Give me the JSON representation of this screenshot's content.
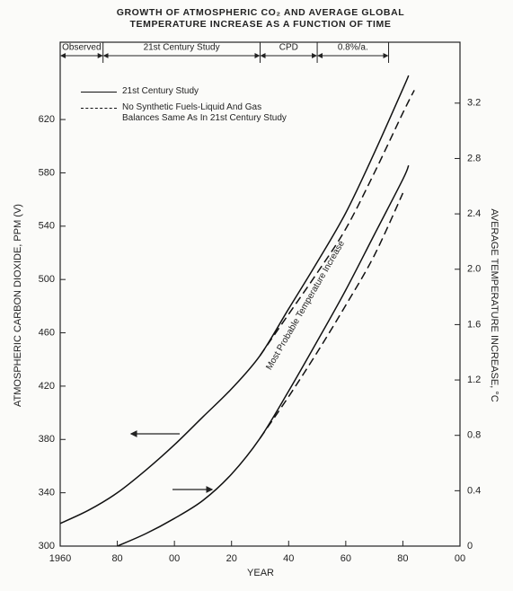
{
  "chart_data": {
    "type": "line",
    "title": [
      "GROWTH OF ATMOSPHERIC CO₂ AND AVERAGE GLOBAL",
      "TEMPERATURE INCREASE AS A FUNCTION OF TIME"
    ],
    "xlabel": "YEAR",
    "ylabel": "ATMOSPHERIC CARBON DIOXIDE, PPM (V)",
    "y2label": "AVERAGE TEMPERATURE INCREASE, °C",
    "annotation": "Most Probable Temperature Increase",
    "periods": [
      {
        "label": "Observed",
        "start": 1960,
        "end": 1975
      },
      {
        "label": "21st Century Study",
        "start": 1975,
        "end": 2030
      },
      {
        "label": "CPD",
        "start": 2030,
        "end": 2050
      },
      {
        "label": "0.8%/a.",
        "start": 2050,
        "end": 2075
      }
    ],
    "xlim": [
      1960,
      2100
    ],
    "xticks": [
      1960,
      {
        "value": 1980,
        "label": "80"
      },
      {
        "value": 2000,
        "label": "00"
      },
      {
        "value": 2020,
        "label": "20"
      },
      {
        "value": 2040,
        "label": "40"
      },
      {
        "value": 2060,
        "label": "60"
      },
      {
        "value": 2080,
        "label": "80"
      },
      {
        "value": 2100,
        "label": "00"
      }
    ],
    "ylim": [
      300,
      678
    ],
    "yticks": [
      300,
      340,
      380,
      420,
      460,
      500,
      540,
      580,
      620
    ],
    "y2lim": [
      0,
      3.64
    ],
    "y2ticks": [
      0,
      0.4,
      0.8,
      1.2,
      1.6,
      {
        "value": 2,
        "label": "2.0"
      },
      2.4,
      2.8,
      3.2
    ],
    "series": [
      {
        "name": "21st Century Study",
        "color": "#111111",
        "dash": false,
        "x": [
          1960,
          1970,
          1980,
          1990,
          2000,
          2010,
          2020,
          2030,
          2040,
          2050,
          2060,
          2070,
          2080,
          2082
        ],
        "values": [
          317,
          327,
          340,
          357,
          376,
          397,
          418,
          443,
          478,
          513,
          550,
          595,
          643,
          653
        ]
      },
      {
        "name": "No Synthetic Fuels-Liquid And Gas Balances Same As In 21st Century Study",
        "color": "#111111",
        "dash": true,
        "x": [
          2030,
          2040,
          2050,
          2060,
          2070,
          2080,
          2084
        ],
        "values": [
          443,
          474,
          505,
          538,
          580,
          625,
          642
        ]
      },
      {
        "color": "#111111",
        "dash": false,
        "axis": "y2",
        "x": [
          1980,
          1990,
          2000,
          2010,
          2020,
          2030,
          2040,
          2050,
          2060,
          2070,
          2080,
          2082
        ],
        "values": [
          0,
          0.09,
          0.2,
          0.33,
          0.52,
          0.78,
          1.12,
          1.48,
          1.85,
          2.25,
          2.65,
          2.75
        ]
      },
      {
        "color": "#111111",
        "dash": true,
        "axis": "y2",
        "x": [
          2030,
          2040,
          2050,
          2060,
          2070,
          2080
        ],
        "values": [
          0.78,
          1.08,
          1.4,
          1.74,
          2.1,
          2.55
        ]
      }
    ]
  }
}
